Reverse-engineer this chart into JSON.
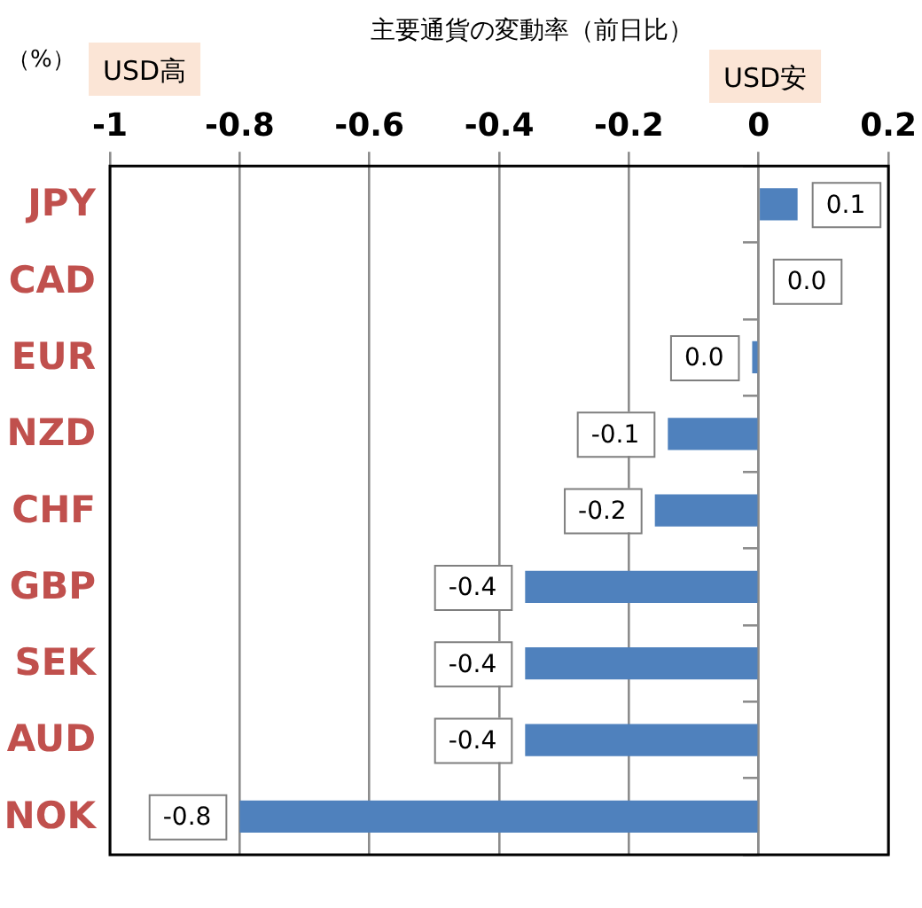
{
  "chart_data": {
    "type": "bar",
    "orientation": "horizontal",
    "title": "主要通貨の変動率（前日比）",
    "xlabel": "（%）",
    "annotations": [
      "USD高",
      "USD安"
    ],
    "categories": [
      "JPY",
      "CAD",
      "EUR",
      "NZD",
      "CHF",
      "GBP",
      "SEK",
      "AUD",
      "NOK"
    ],
    "values": [
      0.06,
      0,
      -0.01,
      -0.14,
      -0.16,
      -0.36,
      -0.36,
      -0.36,
      -0.8
    ],
    "value_labels": [
      "0.1",
      "0.0",
      "0.0",
      "-0.1",
      "-0.2",
      "-0.4",
      "-0.4",
      "-0.4",
      "-0.8"
    ],
    "color": "#4f81bd",
    "xlim": [
      -1,
      0.2
    ],
    "xticks": [
      -1,
      -0.8,
      -0.6,
      -0.4,
      -0.2,
      0,
      0.2
    ],
    "grid": "x",
    "legend": false
  }
}
